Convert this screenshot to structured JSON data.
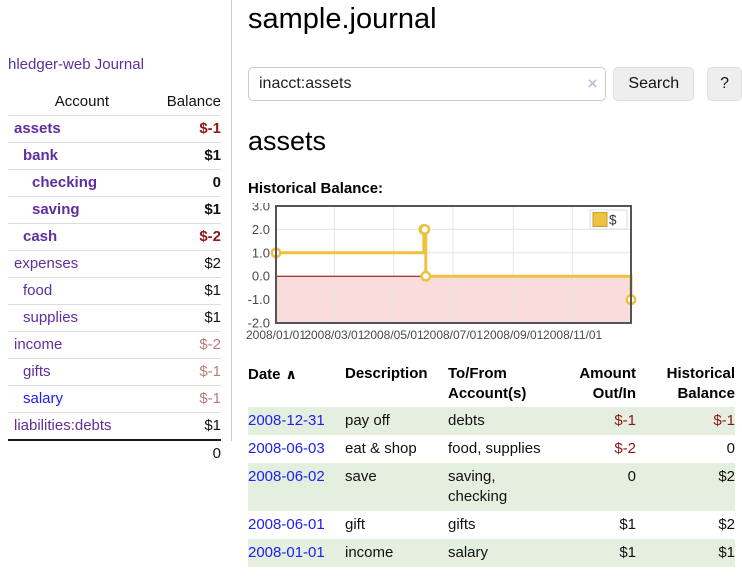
{
  "colors": {
    "accent_purple": "#5e2f9d",
    "link_blue": "#2020ee",
    "negative_dark": "#8b1717",
    "negative_muted": "#bb7b7b",
    "row_stripe_green": "#e4efdf",
    "series_yellow": "#EDC240"
  },
  "sidebar": {
    "brand": "hledger-web",
    "nav_journal": "Journal",
    "account_table": {
      "headers": {
        "account": "Account",
        "balance": "Balance"
      },
      "rows": [
        {
          "name": "assets",
          "balance": "$-1",
          "indent": 1,
          "bold": true,
          "balance_style": "neg"
        },
        {
          "name": "bank",
          "balance": "$1",
          "indent": 2,
          "bold": true,
          "balance_style": ""
        },
        {
          "name": "checking",
          "balance": "0",
          "indent": 3,
          "bold": true,
          "balance_style": ""
        },
        {
          "name": "saving",
          "balance": "$1",
          "indent": 3,
          "bold": true,
          "balance_style": ""
        },
        {
          "name": "cash",
          "balance": "$-2",
          "indent": 2,
          "bold": true,
          "balance_style": "neg"
        },
        {
          "name": "expenses",
          "balance": "$2",
          "indent": 1,
          "bold": false,
          "balance_style": ""
        },
        {
          "name": "food",
          "balance": "$1",
          "indent": 2,
          "bold": false,
          "balance_style": ""
        },
        {
          "name": "supplies",
          "balance": "$1",
          "indent": 2,
          "bold": false,
          "balance_style": ""
        },
        {
          "name": "income",
          "balance": "$-2",
          "indent": 1,
          "bold": false,
          "balance_style": "negmuted"
        },
        {
          "name": "gifts",
          "balance": "$-1",
          "indent": 2,
          "bold": false,
          "balance_style": "negmuted"
        },
        {
          "name": "salary",
          "balance": "$-1",
          "indent": 2,
          "bold": false,
          "balance_style": "negmuted",
          "unvisited": true
        },
        {
          "name": "liabilities:debts",
          "balance": "$1",
          "indent": 1,
          "bold": false,
          "balance_style": ""
        }
      ],
      "total": "0"
    }
  },
  "main": {
    "title": "sample.journal",
    "search": {
      "value": "inacct:assets",
      "clear_icon": "×",
      "search_button": "Search",
      "help_button": "?"
    },
    "account_heading": "assets",
    "chart_title": "Historical Balance:"
  },
  "chart_data": {
    "type": "line",
    "line_style": "steps",
    "title": "Historical Balance",
    "x_type": "date",
    "xlim": [
      "2008-01-01",
      "2008-12-31"
    ],
    "ylim": [
      -2,
      3
    ],
    "y_ticks": [
      3.0,
      2.0,
      1.0,
      0.0,
      -1.0,
      -2.0
    ],
    "x_ticks": [
      {
        "date": "2008-01-01",
        "label": "2008/01/01"
      },
      {
        "date": "2008-03-01",
        "label": "2008/03/01"
      },
      {
        "date": "2008-05-01",
        "label": "2008/05/01"
      },
      {
        "date": "2008-07-01",
        "label": "2008/07/01"
      },
      {
        "date": "2008-09-01",
        "label": "2008/09/01"
      },
      {
        "date": "2008-11-01",
        "label": "2008/11/01"
      }
    ],
    "grid": true,
    "legend": {
      "position": "top-right",
      "label": "$"
    },
    "negative_region_color": "#fbdcdc",
    "zero_line_color": "#8b0000",
    "border_color": "#545454",
    "grid_color": "#e6e6e6",
    "tick_text_color": "#4a4a4a",
    "series": [
      {
        "name": "$",
        "color": "#EDC240",
        "marker": "open-circle",
        "points": [
          [
            "2008-01-01",
            1
          ],
          [
            "2008-06-01",
            2
          ],
          [
            "2008-06-02",
            2
          ],
          [
            "2008-06-03",
            0
          ],
          [
            "2008-12-31",
            -1
          ]
        ]
      }
    ]
  },
  "register": {
    "headers": {
      "date": "Date",
      "sort_indicator": "∧",
      "description": "Description",
      "accounts": "To/From Account(s)",
      "amount": "Amount Out/In",
      "balance": "Historical Balance"
    },
    "rows": [
      {
        "date": "2008-12-31",
        "description": "pay off",
        "accounts": "debts",
        "amount": "$-1",
        "amount_neg": true,
        "balance": "$-1",
        "balance_neg": true
      },
      {
        "date": "2008-06-03",
        "description": "eat & shop",
        "accounts": "food, supplies",
        "amount": "$-2",
        "amount_neg": true,
        "balance": "0",
        "balance_neg": false
      },
      {
        "date": "2008-06-02",
        "description": "save",
        "accounts": "saving, checking",
        "amount": "0",
        "amount_neg": false,
        "balance": "$2",
        "balance_neg": false
      },
      {
        "date": "2008-06-01",
        "description": "gift",
        "accounts": "gifts",
        "amount": "$1",
        "amount_neg": false,
        "balance": "$2",
        "balance_neg": false
      },
      {
        "date": "2008-01-01",
        "description": "income",
        "accounts": "salary",
        "amount": "$1",
        "amount_neg": false,
        "balance": "$1",
        "balance_neg": false
      }
    ]
  }
}
